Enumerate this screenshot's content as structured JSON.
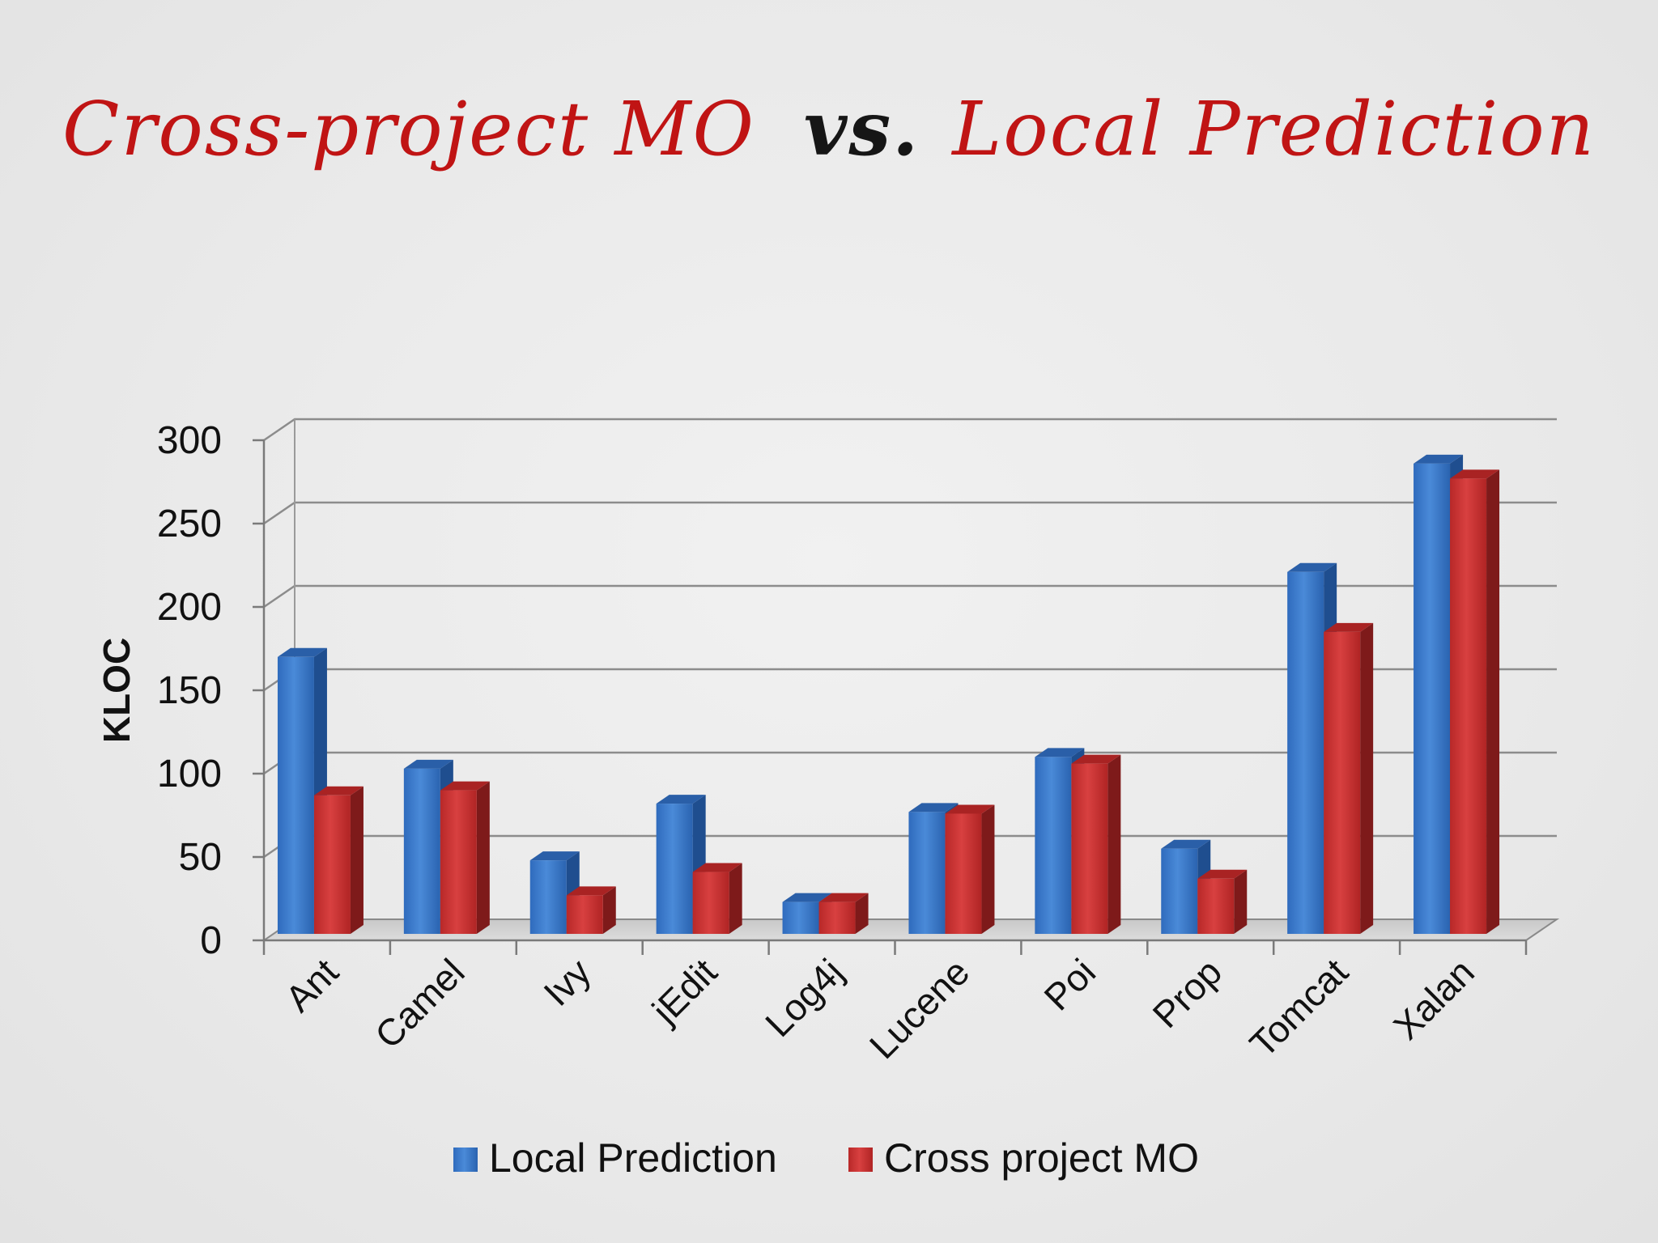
{
  "slide": {
    "title_part1": "Cross-project MO",
    "title_part2": "vs.",
    "title_part3": "Local Prediction"
  },
  "chart_data": {
    "type": "bar",
    "title": "",
    "xlabel": "",
    "ylabel": "KLOC",
    "ylim": [
      0,
      300
    ],
    "yticks": [
      0,
      50,
      100,
      150,
      200,
      250,
      300
    ],
    "grid": true,
    "legend_position": "bottom",
    "categories": [
      "Ant",
      "Camel",
      "Ivy",
      "jEdit",
      "Log4j",
      "Lucene",
      "Poi",
      "Prop",
      "Tomcat",
      "Xalan"
    ],
    "series": [
      {
        "name": "Local Prediction",
        "color": "#3a78c8",
        "values": [
          170,
          103,
          48,
          82,
          23,
          77,
          110,
          55,
          221,
          286
        ]
      },
      {
        "name": "Cross project MO",
        "color": "#cc3333",
        "values": [
          87,
          90,
          27,
          41,
          23,
          76,
          106,
          37,
          185,
          277
        ]
      }
    ]
  }
}
